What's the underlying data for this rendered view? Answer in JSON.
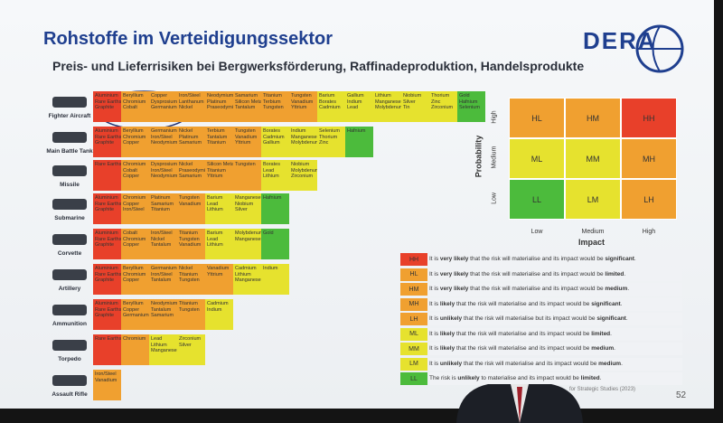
{
  "header": {
    "title": "Rohstoffe im Verteidigungssektor",
    "subtitle": "Preis- und Lieferrisiken bei Bergwerksförderung, Raffinadeproduktion, Handelsprodukte",
    "logo": "DERA"
  },
  "systems": [
    {
      "label": "Fighter Aircraft",
      "cells": [
        {
          "color": "#e8402a",
          "lines": [
            "Aluminium",
            "Rare Earths",
            "Graphite"
          ]
        },
        {
          "color": "#f0a030",
          "lines": [
            "Beryllium",
            "Chromium",
            "Cobalt"
          ]
        },
        {
          "color": "#f0a030",
          "lines": [
            "Copper",
            "Dysprosium",
            "Germanium"
          ]
        },
        {
          "color": "#f0a030",
          "lines": [
            "Iron/Steel",
            "Lanthanum",
            "Nickel"
          ]
        },
        {
          "color": "#f0a030",
          "lines": [
            "Neodymium",
            "Platinum",
            "Praseodymium"
          ]
        },
        {
          "color": "#f0a030",
          "lines": [
            "Samarium",
            "Silicon Metal",
            "Tantalum"
          ]
        },
        {
          "color": "#f0a030",
          "lines": [
            "Titanium",
            "Terbium",
            "Tungsten"
          ]
        },
        {
          "color": "#f0a030",
          "lines": [
            "Tungsten",
            "Vanadium",
            "Yttrium"
          ]
        },
        {
          "color": "#e6e22e",
          "lines": [
            "Barium",
            "Borates",
            "Cadmium"
          ]
        },
        {
          "color": "#e6e22e",
          "lines": [
            "Gallium",
            "Indium",
            "Lead"
          ]
        },
        {
          "color": "#e6e22e",
          "lines": [
            "Lithium",
            "Manganese",
            "Molybdenum"
          ]
        },
        {
          "color": "#e6e22e",
          "lines": [
            "Niobium",
            "Silver",
            "Tin"
          ]
        },
        {
          "color": "#e6e22e",
          "lines": [
            "Thorium",
            "Zinc",
            "Zirconium"
          ]
        },
        {
          "color": "#4cbb3c",
          "lines": [
            "Gold",
            "Hafnium",
            "Selenium"
          ]
        }
      ]
    },
    {
      "label": "Main Battle Tank",
      "cells": [
        {
          "color": "#e8402a",
          "lines": [
            "Aluminium",
            "Rare Earths",
            "Graphite"
          ]
        },
        {
          "color": "#f0a030",
          "lines": [
            "Beryllium",
            "Chromium",
            "Copper"
          ]
        },
        {
          "color": "#f0a030",
          "lines": [
            "Germanium",
            "Iron/Steel",
            "Neodymium"
          ]
        },
        {
          "color": "#f0a030",
          "lines": [
            "Nickel",
            "Platinum",
            "Samarium"
          ]
        },
        {
          "color": "#f0a030",
          "lines": [
            "Terbium",
            "Tantalum",
            "Titanium"
          ]
        },
        {
          "color": "#f0a030",
          "lines": [
            "Tungsten",
            "Vanadium",
            "Yttrium"
          ]
        },
        {
          "color": "#e6e22e",
          "lines": [
            "Borates",
            "Cadmium",
            "Gallium"
          ]
        },
        {
          "color": "#e6e22e",
          "lines": [
            "Indium",
            "Manganese",
            "Molybdenum"
          ]
        },
        {
          "color": "#e6e22e",
          "lines": [
            "Selenium",
            "Thorium",
            "Zinc"
          ]
        },
        {
          "color": "#4cbb3c",
          "lines": [
            "Hafnium"
          ]
        }
      ]
    },
    {
      "label": "Missile",
      "cells": [
        {
          "color": "#e8402a",
          "lines": [
            "Rare Earths"
          ]
        },
        {
          "color": "#f0a030",
          "lines": [
            "Chromium",
            "Cobalt",
            "Copper"
          ]
        },
        {
          "color": "#f0a030",
          "lines": [
            "Dysprosium",
            "Iron/Steel",
            "Neodymium"
          ]
        },
        {
          "color": "#f0a030",
          "lines": [
            "Nickel",
            "Praseodymium",
            "Samarium"
          ]
        },
        {
          "color": "#f0a030",
          "lines": [
            "Silicon Metal",
            "Titanium",
            "Yttrium"
          ]
        },
        {
          "color": "#f0a030",
          "lines": [
            "Tungsten"
          ]
        },
        {
          "color": "#e6e22e",
          "lines": [
            "Borates",
            "Lead",
            "Lithium"
          ]
        },
        {
          "color": "#e6e22e",
          "lines": [
            "Niobium",
            "Molybdenum",
            "Zirconium"
          ]
        }
      ]
    },
    {
      "label": "Submarine",
      "cells": [
        {
          "color": "#e8402a",
          "lines": [
            "Aluminium",
            "Rare Earths",
            "Graphite"
          ]
        },
        {
          "color": "#f0a030",
          "lines": [
            "Chromium",
            "Copper",
            "Iron/Steel"
          ]
        },
        {
          "color": "#f0a030",
          "lines": [
            "Platinum",
            "Samarium",
            "Titanium"
          ]
        },
        {
          "color": "#f0a030",
          "lines": [
            "Tungsten",
            "Vanadium"
          ]
        },
        {
          "color": "#e6e22e",
          "lines": [
            "Barium",
            "Lead",
            "Lithium"
          ]
        },
        {
          "color": "#e6e22e",
          "lines": [
            "Manganese",
            "Niobium",
            "Silver"
          ]
        },
        {
          "color": "#4cbb3c",
          "lines": [
            "Hafnium"
          ]
        }
      ]
    },
    {
      "label": "Corvette",
      "cells": [
        {
          "color": "#e8402a",
          "lines": [
            "Aluminium",
            "Rare Earths",
            "Graphite"
          ]
        },
        {
          "color": "#f0a030",
          "lines": [
            "Cobalt",
            "Chromium",
            "Copper"
          ]
        },
        {
          "color": "#f0a030",
          "lines": [
            "Iron/Steel",
            "Nickel",
            "Tantalum"
          ]
        },
        {
          "color": "#f0a030",
          "lines": [
            "Titanium",
            "Tungsten",
            "Vanadium"
          ]
        },
        {
          "color": "#e6e22e",
          "lines": [
            "Barium",
            "Lead",
            "Lithium"
          ]
        },
        {
          "color": "#e6e22e",
          "lines": [
            "Molybdenum",
            "Manganese"
          ]
        },
        {
          "color": "#4cbb3c",
          "lines": [
            "Gold"
          ]
        }
      ]
    },
    {
      "label": "Artillery",
      "cells": [
        {
          "color": "#e8402a",
          "lines": [
            "Aluminium",
            "Rare Earths",
            "Graphite"
          ]
        },
        {
          "color": "#f0a030",
          "lines": [
            "Beryllium",
            "Chromium",
            "Copper"
          ]
        },
        {
          "color": "#f0a030",
          "lines": [
            "Germanium",
            "Iron/Steel",
            "Tantalum"
          ]
        },
        {
          "color": "#f0a030",
          "lines": [
            "Nickel",
            "Titanium",
            "Tungsten"
          ]
        },
        {
          "color": "#f0a030",
          "lines": [
            "Vanadium",
            "Yttrium"
          ]
        },
        {
          "color": "#e6e22e",
          "lines": [
            "Cadmium",
            "Lithium",
            "Manganese"
          ]
        },
        {
          "color": "#e6e22e",
          "lines": [
            "Indium"
          ]
        }
      ]
    },
    {
      "label": "Ammunition",
      "cells": [
        {
          "color": "#e8402a",
          "lines": [
            "Aluminium",
            "Rare Earths",
            "Graphite"
          ]
        },
        {
          "color": "#f0a030",
          "lines": [
            "Beryllium",
            "Copper",
            "Germanium"
          ]
        },
        {
          "color": "#f0a030",
          "lines": [
            "Neodymium",
            "Tantalum",
            "Samarium"
          ]
        },
        {
          "color": "#f0a030",
          "lines": [
            "Titanium",
            "Tungsten"
          ]
        },
        {
          "color": "#e6e22e",
          "lines": [
            "Cadmium",
            "Indium"
          ]
        }
      ]
    },
    {
      "label": "Torpedo",
      "cells": [
        {
          "color": "#e8402a",
          "lines": [
            "Rare Earths"
          ]
        },
        {
          "color": "#f0a030",
          "lines": [
            "Chromium"
          ]
        },
        {
          "color": "#e6e22e",
          "lines": [
            "Lead",
            "Lithium",
            "Manganese"
          ]
        },
        {
          "color": "#e6e22e",
          "lines": [
            "Zirconium",
            "Silver"
          ]
        }
      ]
    },
    {
      "label": "Assault Rifle",
      "cells": [
        {
          "color": "#f0a030",
          "lines": [
            "Iron/Steel",
            "Vanadium"
          ]
        }
      ]
    }
  ],
  "matrix": {
    "y_label": "Probability",
    "x_label": "Impact",
    "rows": [
      "High",
      "Medium",
      "Low"
    ],
    "columns": [
      "Low",
      "Medium",
      "High"
    ],
    "cells": [
      [
        {
          "code": "HL",
          "color": "#f0a030"
        },
        {
          "code": "HM",
          "color": "#f0a030"
        },
        {
          "code": "HH",
          "color": "#e8402a"
        }
      ],
      [
        {
          "code": "ML",
          "color": "#e6e22e"
        },
        {
          "code": "MM",
          "color": "#e6e22e"
        },
        {
          "code": "MH",
          "color": "#f0a030"
        }
      ],
      [
        {
          "code": "LL",
          "color": "#4cbb3c"
        },
        {
          "code": "LM",
          "color": "#e6e22e"
        },
        {
          "code": "LH",
          "color": "#f0a030"
        }
      ]
    ]
  },
  "legend": [
    {
      "code": "HH",
      "color": "#e8402a",
      "parts": [
        "It is ",
        "very likely",
        " that the risk will materialise and its impact would be ",
        "significant",
        "."
      ]
    },
    {
      "code": "HL",
      "color": "#f0a030",
      "parts": [
        "It is ",
        "very likely",
        " that the risk will materialise and its impact would be ",
        "limited",
        "."
      ]
    },
    {
      "code": "HM",
      "color": "#f0a030",
      "parts": [
        "It is ",
        "very likely",
        " that the risk will materialise and its impact would be ",
        "medium",
        "."
      ]
    },
    {
      "code": "MH",
      "color": "#f0a030",
      "parts": [
        "It is ",
        "likely",
        " that the risk will materialise and its impact would be ",
        "significant",
        "."
      ]
    },
    {
      "code": "LH",
      "color": "#f0a030",
      "parts": [
        "It is ",
        "unlikely",
        " that the risk will materialise but its impact would be ",
        "significant",
        "."
      ]
    },
    {
      "code": "ML",
      "color": "#e6e22e",
      "parts": [
        "It is ",
        "likely",
        " that the risk will materialise and its impact would be ",
        "limited",
        "."
      ]
    },
    {
      "code": "MM",
      "color": "#e6e22e",
      "parts": [
        "It is ",
        "likely",
        " that the risk will materialise and its impact would be ",
        "medium",
        "."
      ]
    },
    {
      "code": "LM",
      "color": "#e6e22e",
      "parts": [
        "It is ",
        "unlikely",
        " that the risk will materialise and its impact would be ",
        "medium",
        "."
      ]
    },
    {
      "code": "LL",
      "color": "#4cbb3c",
      "parts": [
        "The risk is ",
        "unlikely",
        " to materialise and its impact would be ",
        "limited",
        "."
      ]
    }
  ],
  "footer": {
    "source": "for Strategic Studies (2023)",
    "page": "52"
  }
}
